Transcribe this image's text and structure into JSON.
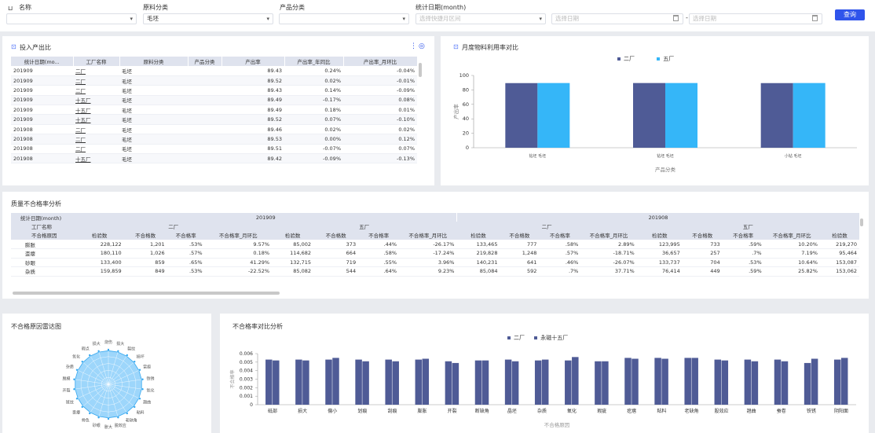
{
  "filters": {
    "name_label": "名称",
    "material_label": "原料分类",
    "material_value": "毛坯",
    "product_label": "产品分类",
    "date_label": "统计日期(month)",
    "range_placeholder": "选择快捷月区间",
    "start_placeholder": "选择日期",
    "end_placeholder": "选择日期",
    "separator": "-",
    "query_button": "查询"
  },
  "io_table": {
    "title": "投入产出比",
    "columns": [
      "统计日期(mo...",
      "工厂名称",
      "原料分类",
      "产品分类",
      "产出率",
      "产出率_年同比",
      "产出率_月环比"
    ],
    "rows": [
      [
        "201909",
        "二厂",
        "毛坯",
        "",
        "89.43",
        "0.24%",
        "-0.04%"
      ],
      [
        "201909",
        "二厂",
        "毛坯",
        "",
        "89.52",
        "0.02%",
        "-0.01%"
      ],
      [
        "201909",
        "二厂",
        "毛坯",
        "",
        "89.43",
        "0.14%",
        "-0.09%"
      ],
      [
        "201909",
        "十五厂",
        "毛坯",
        "",
        "89.49",
        "-0.17%",
        "0.08%"
      ],
      [
        "201909",
        "十五厂",
        "毛坯",
        "",
        "89.49",
        "0.18%",
        "0.01%"
      ],
      [
        "201909",
        "十五厂",
        "毛坯",
        "",
        "89.52",
        "0.07%",
        "-0.10%"
      ],
      [
        "201908",
        "二厂",
        "毛坯",
        "",
        "89.46",
        "0.02%",
        "0.02%"
      ],
      [
        "201908",
        "二厂",
        "毛坯",
        "",
        "89.53",
        "0.00%",
        "0.12%"
      ],
      [
        "201908",
        "二厂",
        "毛坯",
        "",
        "89.51",
        "-0.07%",
        "0.07%"
      ],
      [
        "201908",
        "十五厂",
        "毛坯",
        "",
        "89.42",
        "-0.09%",
        "-0.13%"
      ]
    ]
  },
  "util_chart": {
    "title": "月度物料利用率对比",
    "legend": [
      "二厂",
      "五厂"
    ],
    "colors": [
      "#4f5b96",
      "#35b6f8"
    ],
    "xlabel": "产品分类",
    "ylabel": "产出率",
    "chart_data": {
      "type": "bar",
      "categories": [
        "钻坯 毛坯",
        "钻坯 毛坯",
        "小钻 毛坯"
      ],
      "series": [
        {
          "name": "二厂",
          "values": [
            89.4,
            89.5,
            89.4
          ]
        },
        {
          "name": "五厂",
          "values": [
            89.5,
            89.5,
            89.5
          ]
        }
      ],
      "ylim": [
        0,
        100
      ],
      "yticks": [
        0,
        20,
        40,
        60,
        80,
        100
      ]
    }
  },
  "quality": {
    "title": "质量不合格率分析",
    "row1_label": "统计日期(month)",
    "row2_label": "工厂名称",
    "row3_label": "不合格原因",
    "months": [
      "201909",
      "201908"
    ],
    "factories": [
      "二厂",
      "五厂",
      "二厂",
      "五厂"
    ],
    "metric_headers": [
      "检验数",
      "不合格数",
      "不合格率",
      "不合格率_月环比"
    ],
    "rows": [
      [
        "膨胀",
        "228,122",
        "1,201",
        ".53%",
        "9.57%",
        "85,002",
        "373",
        ".44%",
        "-26.17%",
        "133,465",
        "777",
        ".58%",
        "2.89%",
        "123,995",
        "733",
        ".59%",
        "10.20%",
        "219,270"
      ],
      [
        "歪瘪",
        "180,110",
        "1,026",
        ".57%",
        "0.18%",
        "114,682",
        "664",
        ".58%",
        "-17.24%",
        "219,828",
        "1,248",
        ".57%",
        "-18.71%",
        "36,657",
        "257",
        ".7%",
        "7.19%",
        "95,464"
      ],
      [
        "砂眼",
        "133,400",
        "859",
        ".65%",
        "41.29%",
        "132,715",
        "719",
        ".55%",
        "3.96%",
        "140,231",
        "641",
        ".46%",
        "-26.07%",
        "133,737",
        "704",
        ".53%",
        "10.64%",
        "153,087"
      ],
      [
        "杂质",
        "159,859",
        "849",
        ".53%",
        "-22.52%",
        "85,082",
        "544",
        ".64%",
        "9.23%",
        "85,084",
        "592",
        ".7%",
        "37.71%",
        "76,414",
        "449",
        ".59%",
        "25.82%",
        "153,062"
      ]
    ]
  },
  "radar": {
    "title": "不合格原因雷达图",
    "labels": [
      "烧伤",
      "损大",
      "裂纹",
      "损坏",
      "雷痕",
      "铁锈",
      "氧化",
      "翘曲",
      "粘料",
      "老缺角",
      "脱效应",
      "胀大",
      "砂眼",
      "骨色",
      "歪瘪",
      "斑纹",
      "开裂",
      "脱模",
      "杂质",
      "氧化",
      "瑕点",
      "损大"
    ]
  },
  "compare": {
    "title": "不合格率对比分析",
    "legend": [
      "二厂",
      "永磁十五厂"
    ],
    "colors": [
      "#4f5b96",
      "#4f5b96"
    ],
    "xlabel": "不合格原因",
    "ylabel": "不合格率",
    "chart_data": {
      "type": "bar",
      "categories": [
        "砥部",
        "损大",
        "傷小",
        "划痕",
        "刮痕",
        "膨胀",
        "开裂",
        "断缺角",
        "晶坯",
        "杂质",
        "氧化",
        "瑕疵",
        "疙瘩",
        "粘料",
        "老缺角",
        "股效应",
        "翘曲",
        "蚕卷",
        "铁锈",
        "阴阳面"
      ],
      "series": [
        {
          "name": "二厂",
          "values": [
            0.0053,
            0.0053,
            0.0053,
            0.0053,
            0.0053,
            0.0053,
            0.0051,
            0.0052,
            0.0053,
            0.0052,
            0.0052,
            0.0051,
            0.0055,
            0.0055,
            0.0055,
            0.0053,
            0.0053,
            0.0053,
            0.0049,
            0.0053
          ]
        },
        {
          "name": "永磁十五厂",
          "values": [
            0.0052,
            0.0052,
            0.0055,
            0.0051,
            0.0051,
            0.0054,
            0.0049,
            0.0052,
            0.0051,
            0.0053,
            0.0056,
            0.0051,
            0.0054,
            0.0054,
            0.0055,
            0.0052,
            0.0051,
            0.0051,
            0.0054,
            0.0055
          ]
        }
      ],
      "ylim": [
        0,
        0.006
      ],
      "yticks": [
        "0",
        "0.001",
        "0.002",
        "0.003",
        "0.004",
        "0.005",
        "0.006"
      ]
    }
  }
}
